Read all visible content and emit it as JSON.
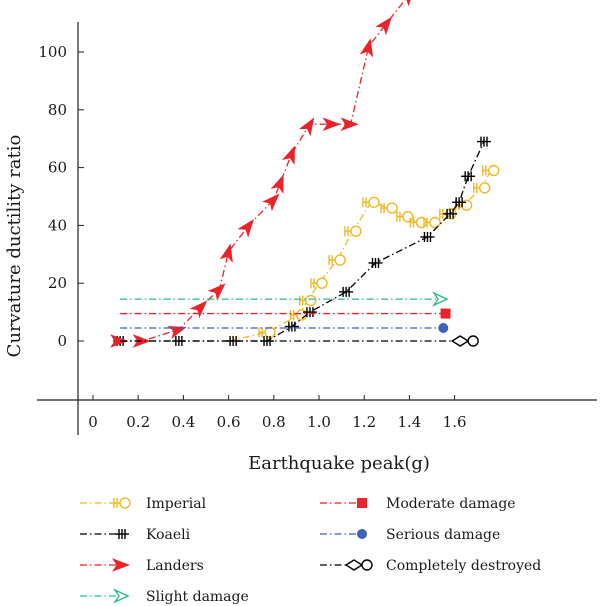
{
  "chart_data": {
    "type": "line",
    "xlabel": "Earthquake peak(g)",
    "ylabel": "Curvature ductility ratio",
    "xlim": [
      -0.1,
      1.78
    ],
    "ylim": [
      -20,
      112
    ],
    "x_ticks": [
      "0",
      "0.2",
      "0.4",
      "0.6",
      "0.8",
      "1.0",
      "1.2",
      "1.4",
      "1.6"
    ],
    "x_tick_values": [
      0,
      0.2,
      0.4,
      0.6,
      0.8,
      1.0,
      1.2,
      1.4,
      1.6
    ],
    "y_ticks": [
      "0",
      "20",
      "40",
      "60",
      "80",
      "100"
    ],
    "y_tick_values": [
      0,
      20,
      40,
      60,
      80,
      100
    ],
    "grid": false,
    "legend_position": "bottom",
    "series": [
      {
        "name": "Imperial",
        "color": "#f2b824",
        "marker": "bar-circle",
        "x": [
          0.6,
          0.77,
          0.91,
          0.95,
          1.0,
          1.08,
          1.15,
          1.23,
          1.31,
          1.38,
          1.44,
          1.5,
          1.57,
          1.64,
          1.72,
          1.76
        ],
        "y": [
          0,
          3,
          9,
          14,
          20,
          28,
          38,
          48,
          46,
          43,
          41,
          41,
          44,
          47,
          53,
          59
        ]
      },
      {
        "name": "Koaeli",
        "color": "#000000",
        "marker": "double-bar",
        "x": [
          0.12,
          0.38,
          0.62,
          0.77,
          0.88,
          0.96,
          1.12,
          1.25,
          1.48,
          1.58,
          1.62,
          1.66,
          1.73
        ],
        "y": [
          0,
          0,
          0,
          0,
          5,
          10,
          17,
          27,
          36,
          44,
          48,
          57,
          69
        ]
      },
      {
        "name": "Landers",
        "color": "#e8232a",
        "marker": "arrow",
        "x": [
          0.12,
          0.22,
          0.38,
          0.48,
          0.56,
          0.6,
          0.69,
          0.8,
          0.83,
          0.88,
          0.96,
          1.06,
          1.14,
          1.22,
          1.3,
          1.4
        ],
        "y": [
          0,
          0,
          4,
          12,
          18,
          31,
          40,
          49,
          55,
          65,
          75,
          75,
          75,
          102,
          110,
          120
        ]
      },
      {
        "name": "Slight damage",
        "color": "#2aba8a",
        "marker": "open-arrow",
        "x": [
          0.12,
          1.54
        ],
        "y": [
          14.5,
          14.5
        ]
      },
      {
        "name": "Moderate damage",
        "color": "#e8232a",
        "marker": "square",
        "x": [
          0.12,
          1.56
        ],
        "y": [
          9.5,
          9.5
        ]
      },
      {
        "name": "Serious damage",
        "color": "#3a62b8",
        "marker": "filled-circle",
        "x": [
          0.12,
          1.55
        ],
        "y": [
          4.5,
          4.5
        ]
      },
      {
        "name": "Completely destroyed",
        "color": "#000000",
        "marker": "diamond-circle",
        "x": [
          0.12,
          1.66
        ],
        "y": [
          0,
          0
        ]
      }
    ]
  }
}
